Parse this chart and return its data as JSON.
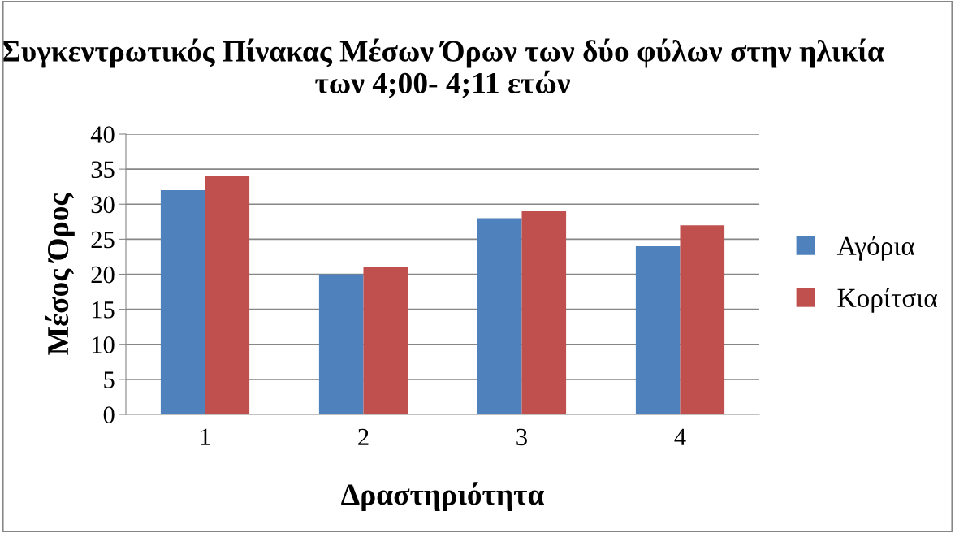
{
  "chart_data": {
    "type": "bar",
    "title": "Συγκεντρωτικός Πίνακας Μέσων Όρων των δύο φύλων στην ηλικία των 4;00- 4;11 ετών",
    "xlabel": "Δραστηριότητα",
    "ylabel": "Μέσος Όρος",
    "categories": [
      "1",
      "2",
      "3",
      "4"
    ],
    "series": [
      {
        "name": "Αγόρια",
        "color": "#4f81bd",
        "values": [
          32,
          20,
          28,
          24
        ]
      },
      {
        "name": "Κορίτσια",
        "color": "#c0504d",
        "values": [
          34,
          21,
          29,
          27
        ]
      }
    ],
    "ylim": [
      0,
      40
    ],
    "yticks": [
      0,
      5,
      10,
      15,
      20,
      25,
      30,
      35,
      40
    ],
    "grid": "y",
    "legend": "right"
  }
}
